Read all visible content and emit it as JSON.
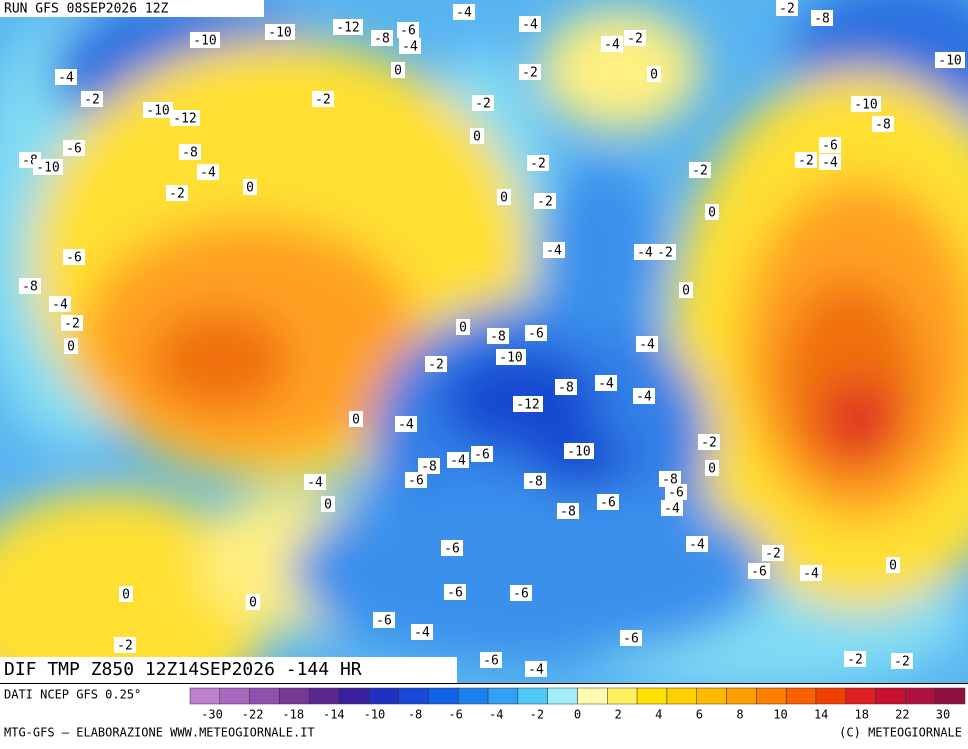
{
  "header": {
    "run": "RUN GFS 08SEP2026 12Z"
  },
  "map": {
    "title": "DIF TMP Z850 12Z14SEP2026 -144 HR",
    "contour_labels": [
      -10,
      -10,
      -12,
      -8,
      -6,
      -4,
      -4,
      -4,
      -4,
      -2,
      -2,
      -8,
      -10,
      -4,
      -2,
      -10,
      -12,
      -2,
      0,
      -2,
      -2,
      0,
      -10,
      -8,
      -6,
      -8,
      -10,
      -8,
      -4,
      0,
      -2,
      -2,
      0,
      0,
      -2,
      -2,
      -2,
      -4,
      -6,
      0,
      -4,
      -4,
      -2,
      -6,
      -8,
      -4,
      -2,
      0,
      0,
      0,
      -8,
      -6,
      -4,
      -2,
      -10,
      -8,
      -4,
      -4,
      -12,
      -4,
      0,
      -2,
      -10,
      -6,
      -4,
      -8,
      -6,
      0,
      -8,
      -8,
      -6,
      -6,
      -4,
      -8,
      -4,
      0,
      -4,
      -2,
      -6,
      -4,
      0,
      -6,
      0,
      0,
      -6,
      -6,
      -6,
      -4,
      -6,
      -2,
      -2,
      -2,
      -6,
      -4
    ]
  },
  "legend": {
    "source": "DATI NCEP GFS 0.25°",
    "colors": [
      "#c080d0",
      "#a868c0",
      "#9050b0",
      "#783898",
      "#5a2890",
      "#3a20a0",
      "#2030c0",
      "#1848d8",
      "#1060e8",
      "#1a80f0",
      "#30a0f8",
      "#50c8f8",
      "#a0ecf8",
      "#fffcb0",
      "#fff060",
      "#ffe000",
      "#ffd000",
      "#ffb800",
      "#ffa000",
      "#ff8000",
      "#f86000",
      "#f04000",
      "#e02020",
      "#c81030",
      "#b01040",
      "#901040"
    ],
    "ticks": [
      -30,
      -22,
      -18,
      -14,
      -10,
      -8,
      -6,
      -4,
      -2,
      0,
      2,
      4,
      6,
      8,
      10,
      14,
      18,
      22,
      30
    ]
  },
  "footer": {
    "left": "MTG-GFS — ELABORAZIONE WWW.METEOGIORNALE.IT",
    "right": "(C) METEOGIORNALE"
  }
}
